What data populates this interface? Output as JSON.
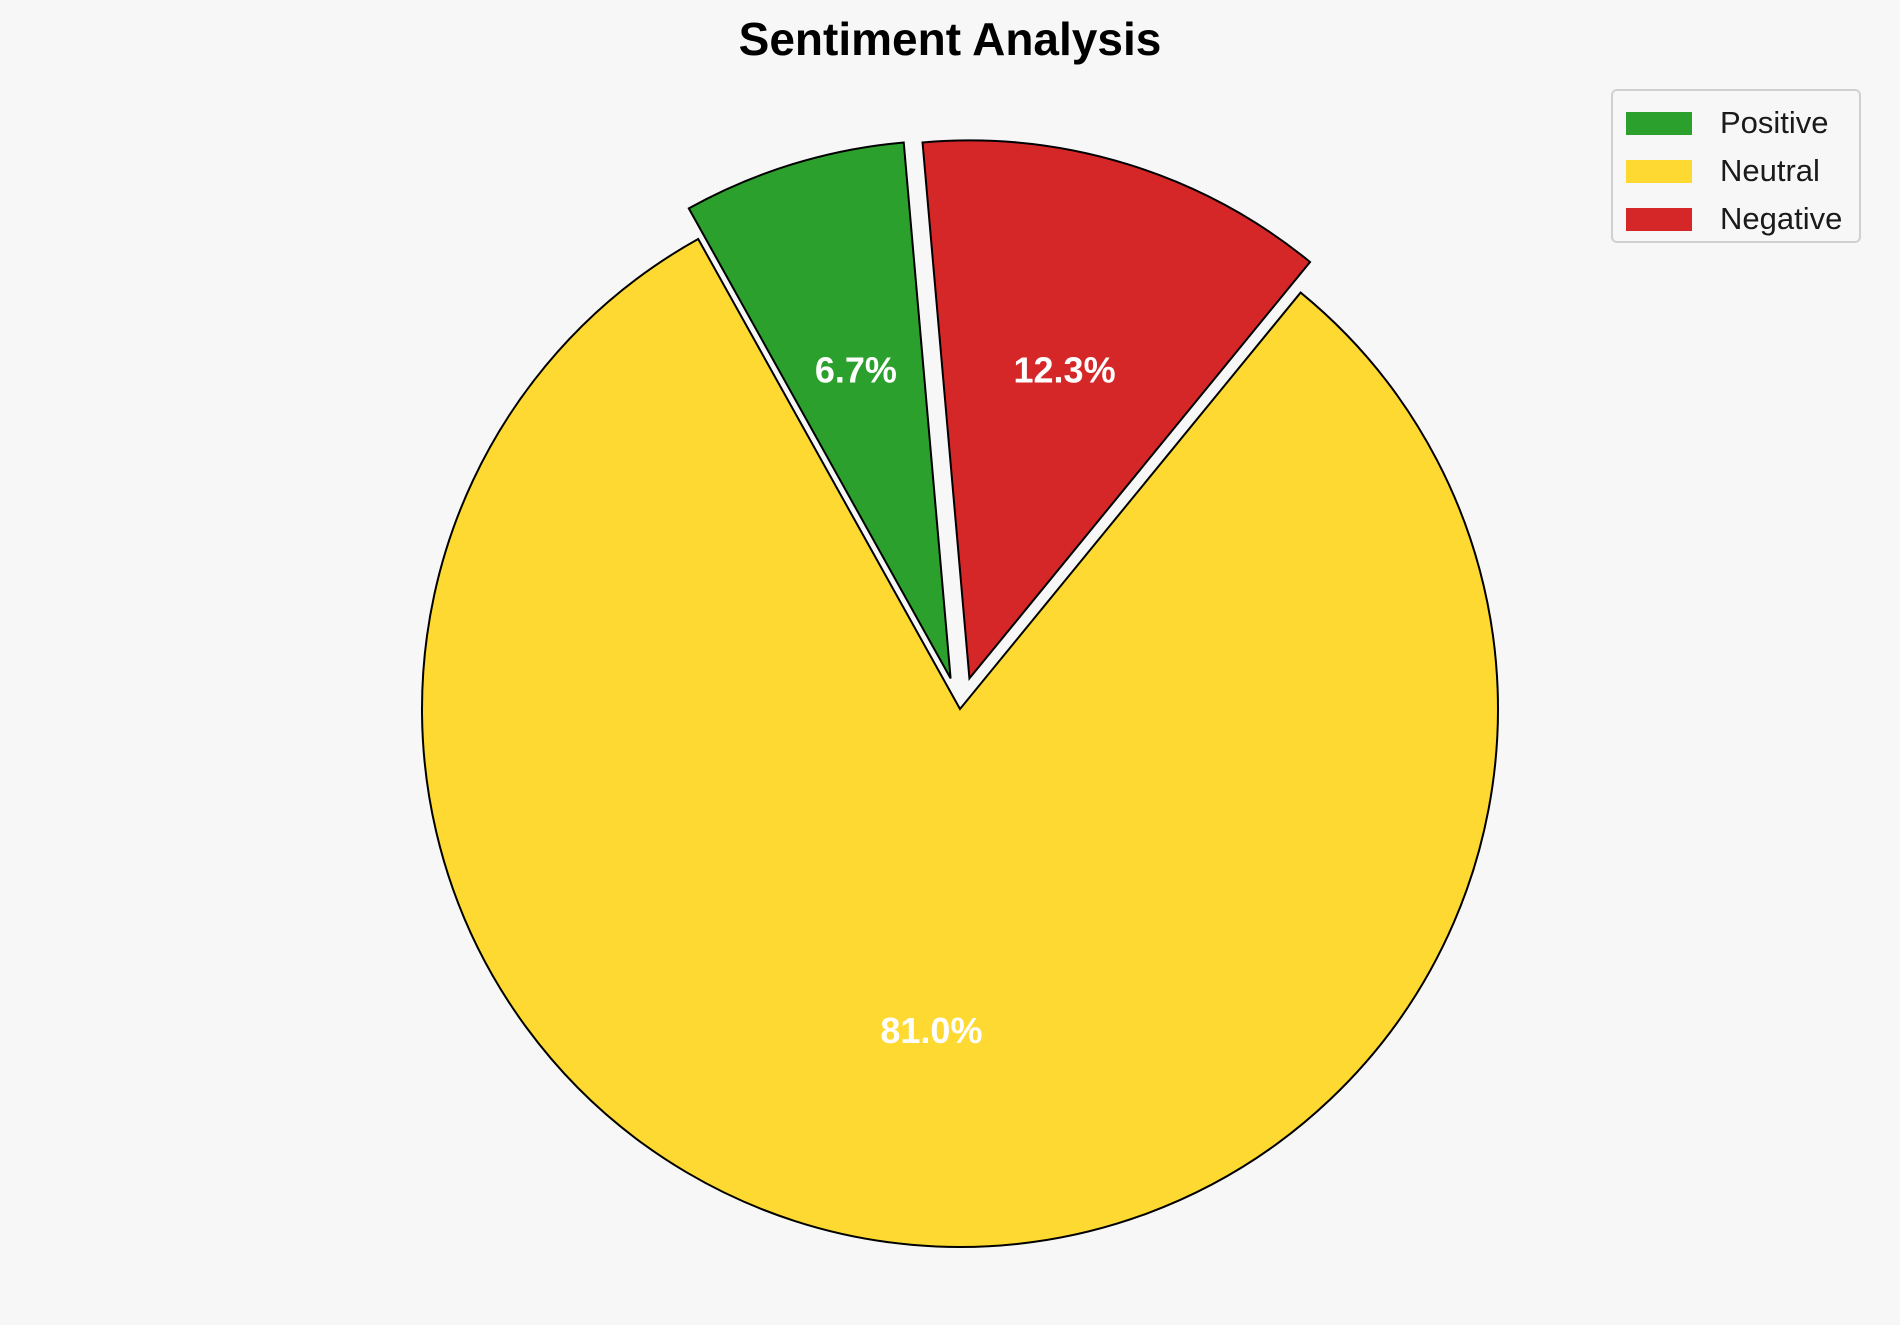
{
  "chart_data": {
    "type": "pie",
    "title": "Sentiment Analysis",
    "slices": [
      {
        "name": "Positive",
        "value": 6.7,
        "label": "6.7%",
        "color": "#2ca02c",
        "exploded": true
      },
      {
        "name": "Neutral",
        "value": 81.0,
        "label": "81.0%",
        "color": "#fdd931",
        "exploded": false
      },
      {
        "name": "Negative",
        "value": 12.3,
        "label": "12.3%",
        "color": "#d62728",
        "exploded": true
      }
    ],
    "legend": {
      "placement": "top-right",
      "entries": [
        "Positive",
        "Neutral",
        "Negative"
      ]
    }
  }
}
